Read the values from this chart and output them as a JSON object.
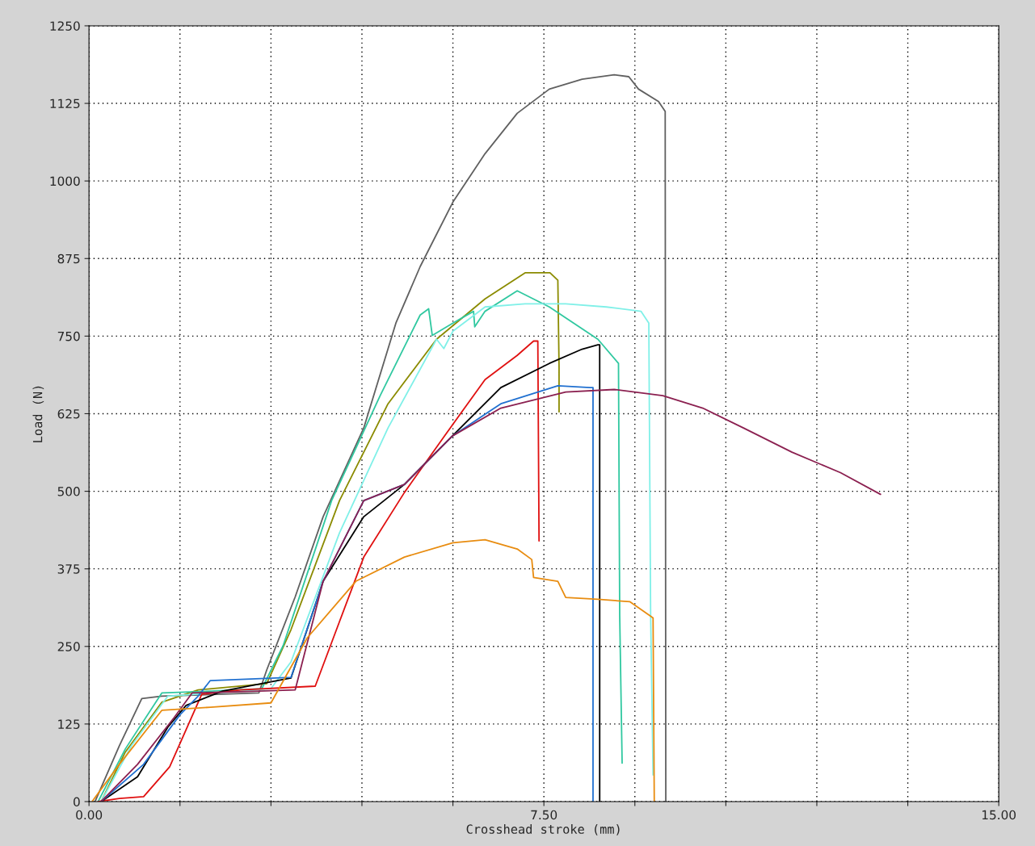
{
  "chart_data": {
    "type": "line",
    "xlabel": "Crosshead stroke (mm)",
    "ylabel": "Load (N)",
    "xlim": [
      0,
      15
    ],
    "ylim": [
      0,
      1250
    ],
    "xticks": [
      {
        "value": 0,
        "label": "0.00"
      },
      {
        "value": 1.5,
        "label": null
      },
      {
        "value": 3,
        "label": null
      },
      {
        "value": 4.5,
        "label": null
      },
      {
        "value": 6,
        "label": null
      },
      {
        "value": 7.5,
        "label": "7.50"
      },
      {
        "value": 9,
        "label": null
      },
      {
        "value": 10.5,
        "label": null
      },
      {
        "value": 12,
        "label": null
      },
      {
        "value": 13.5,
        "label": null
      },
      {
        "value": 15,
        "label": "15.00"
      }
    ],
    "yticks": [
      0,
      125,
      250,
      375,
      500,
      625,
      750,
      875,
      1000,
      1125,
      1250
    ],
    "grid": true,
    "legend": false,
    "marker": "none",
    "line_style": "solid",
    "series": [
      {
        "color": "#606060",
        "x": [
          0.1,
          0.5,
          0.87,
          1.2,
          2.8,
          2.93,
          3.4,
          3.86,
          4.53,
          5.06,
          5.46,
          6.0,
          6.53,
          7.06,
          7.59,
          8.13,
          8.66,
          8.9,
          9.06,
          9.39,
          9.5,
          9.51
        ],
        "values": [
          0,
          90,
          166,
          170,
          175,
          212,
          330,
          459,
          602,
          771,
          862,
          966,
          1044,
          1109,
          1148,
          1164,
          1171,
          1168,
          1148,
          1128,
          1112,
          0
        ]
      },
      {
        "color": "#8b8b00",
        "x": [
          0.2,
          0.6,
          1.2,
          1.8,
          2.93,
          3.33,
          4.13,
          4.93,
          5.73,
          6.53,
          7.19,
          7.6,
          7.73,
          7.75,
          7.75
        ],
        "values": [
          0,
          80,
          160,
          180,
          190,
          277,
          485,
          641,
          745,
          810,
          852,
          852,
          840,
          700,
          628
        ]
      },
      {
        "color": "#30c8a0",
        "x": [
          0.15,
          0.6,
          1.2,
          2.0,
          2.85,
          3.2,
          4.0,
          4.8,
          5.46,
          5.6,
          5.66,
          6.0,
          6.34,
          6.36,
          6.53,
          7.06,
          7.59,
          7.99,
          8.39,
          8.73,
          8.75,
          8.79
        ],
        "values": [
          0,
          85,
          175,
          178,
          182,
          251,
          485,
          654,
          784,
          794,
          751,
          771,
          790,
          765,
          790,
          823,
          797,
          771,
          745,
          706,
          300,
          62
        ]
      },
      {
        "color": "#80f0e8",
        "x": [
          0.2,
          0.7,
          1.3,
          2.5,
          3.0,
          3.33,
          4.13,
          4.93,
          5.73,
          5.85,
          6.0,
          6.53,
          7.19,
          7.86,
          8.53,
          9.1,
          9.23,
          9.26,
          9.3
        ],
        "values": [
          0,
          90,
          170,
          178,
          182,
          225,
          433,
          602,
          745,
          730,
          758,
          797,
          802,
          802,
          797,
          790,
          771,
          300,
          43
        ]
      },
      {
        "color": "#e01010",
        "x": [
          0.15,
          0.5,
          0.9,
          1.33,
          1.86,
          2.5,
          3.73,
          4.13,
          4.53,
          5.2,
          5.86,
          6.53,
          7.06,
          7.33,
          7.4,
          7.42
        ],
        "values": [
          0,
          5,
          8,
          56,
          173,
          180,
          186,
          290,
          394,
          498,
          589,
          680,
          719,
          742,
          742,
          420
        ]
      },
      {
        "color": "#000000",
        "x": [
          0.2,
          0.8,
          1.3,
          1.6,
          2.2,
          3.33,
          3.86,
          4.53,
          5.2,
          5.99,
          6.79,
          7.59,
          8.13,
          8.39,
          8.42,
          8.42
        ],
        "values": [
          0,
          40,
          120,
          155,
          178,
          199,
          355,
          459,
          511,
          589,
          667,
          706,
          729,
          736,
          736,
          0
        ]
      },
      {
        "color": "#2070d0",
        "x": [
          0.2,
          0.9,
          1.5,
          1.8,
          2.0,
          3.33,
          3.86,
          4.53,
          5.2,
          5.99,
          6.79,
          7.73,
          8.26,
          8.31,
          8.31
        ],
        "values": [
          0,
          60,
          140,
          170,
          195,
          200,
          355,
          485,
          511,
          589,
          641,
          670,
          667,
          667,
          0
        ]
      },
      {
        "color": "#8b2050",
        "x": [
          0.2,
          0.8,
          1.4,
          1.7,
          2.5,
          3.4,
          3.86,
          4.53,
          5.2,
          5.99,
          6.79,
          7.86,
          8.66,
          9.46,
          10.12,
          10.79,
          11.59,
          12.39,
          13.05
        ],
        "values": [
          0,
          60,
          135,
          175,
          177,
          180,
          355,
          485,
          511,
          589,
          634,
          660,
          664,
          654,
          634,
          602,
          563,
          530,
          495
        ]
      },
      {
        "color": "#e88c10",
        "x": [
          0.05,
          0.5,
          1.2,
          2.0,
          3.0,
          3.6,
          4.4,
          5.2,
          6.0,
          6.53,
          7.06,
          7.3,
          7.33,
          7.73,
          7.86,
          8.39,
          8.92,
          9.3,
          9.32
        ],
        "values": [
          0,
          60,
          147,
          152,
          159,
          264,
          355,
          394,
          417,
          422,
          407,
          390,
          361,
          355,
          329,
          326,
          322,
          296,
          0
        ]
      }
    ]
  }
}
